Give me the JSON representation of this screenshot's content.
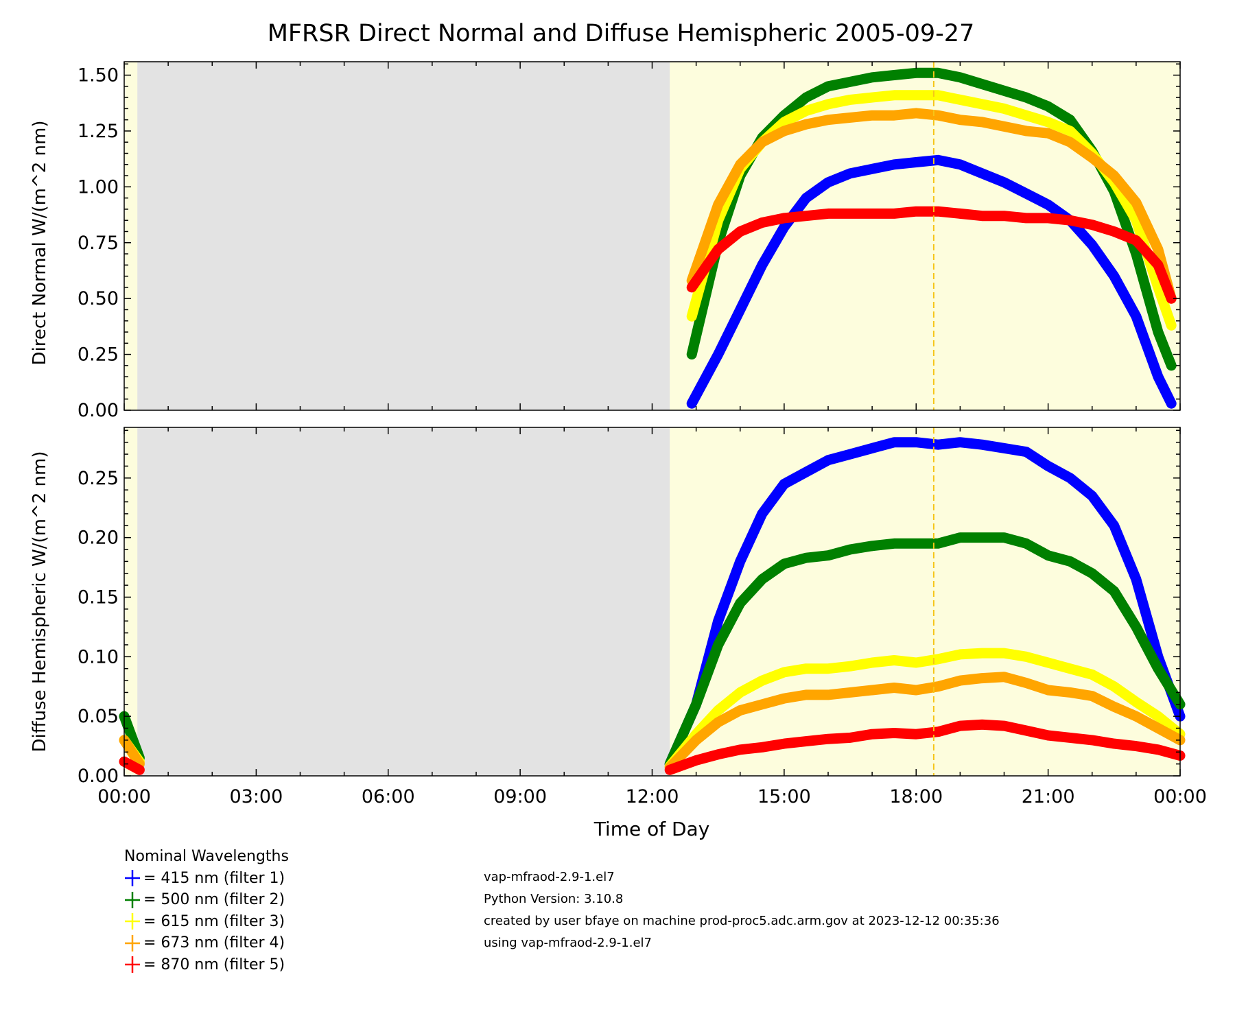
{
  "chart_data": [
    {
      "type": "scatter",
      "panel": "top",
      "title": "MFRSR Direct Normal and Diffuse Hemispheric 2005-09-27",
      "ylabel": "Direct Normal W/(m^2 nm)",
      "xlabel": "",
      "xlim": [
        0,
        24
      ],
      "ylim": [
        0,
        1.56
      ],
      "x_unit": "hours",
      "xticks": [
        0,
        3,
        6,
        9,
        12,
        15,
        18,
        21,
        24
      ],
      "yticks": [
        0,
        0.25,
        0.5,
        0.75,
        1.0,
        1.25,
        1.5
      ],
      "ytick_labels": [
        "0.00",
        "0.25",
        "0.50",
        "0.75",
        "1.00",
        "1.25",
        "1.50"
      ],
      "night_shading": [
        [
          0.3,
          12.4
        ]
      ],
      "solar_noon_line": 18.4,
      "x": [
        12.9,
        13.5,
        14,
        14.5,
        15,
        15.5,
        16,
        16.5,
        17,
        17.5,
        18,
        18.5,
        19,
        19.5,
        20,
        20.5,
        21,
        21.5,
        22,
        22.5,
        23,
        23.5,
        23.8
      ],
      "series": [
        {
          "name": "415 nm",
          "color": "#0000ff",
          "values": [
            0.03,
            0.25,
            0.45,
            0.65,
            0.82,
            0.95,
            1.02,
            1.06,
            1.08,
            1.1,
            1.11,
            1.12,
            1.1,
            1.06,
            1.02,
            0.97,
            0.92,
            0.85,
            0.74,
            0.6,
            0.42,
            0.15,
            0.03
          ]
        },
        {
          "name": "500 nm",
          "color": "#008000",
          "values": [
            0.25,
            0.75,
            1.05,
            1.22,
            1.32,
            1.4,
            1.45,
            1.47,
            1.49,
            1.5,
            1.51,
            1.51,
            1.49,
            1.46,
            1.43,
            1.4,
            1.36,
            1.3,
            1.16,
            0.98,
            0.7,
            0.35,
            0.2
          ]
        },
        {
          "name": "615 nm",
          "color": "#ffff00",
          "values": [
            0.42,
            0.85,
            1.08,
            1.2,
            1.29,
            1.34,
            1.37,
            1.39,
            1.4,
            1.41,
            1.41,
            1.41,
            1.39,
            1.37,
            1.35,
            1.32,
            1.29,
            1.25,
            1.15,
            1.02,
            0.85,
            0.55,
            0.38
          ]
        },
        {
          "name": "673 nm",
          "color": "#ffa500",
          "values": [
            0.58,
            0.92,
            1.1,
            1.2,
            1.25,
            1.28,
            1.3,
            1.31,
            1.32,
            1.32,
            1.33,
            1.32,
            1.3,
            1.29,
            1.27,
            1.25,
            1.24,
            1.2,
            1.13,
            1.05,
            0.93,
            0.72,
            0.5
          ]
        },
        {
          "name": "870 nm",
          "color": "#ff0000",
          "values": [
            0.55,
            0.72,
            0.8,
            0.84,
            0.86,
            0.87,
            0.88,
            0.88,
            0.88,
            0.88,
            0.89,
            0.89,
            0.88,
            0.87,
            0.87,
            0.86,
            0.86,
            0.85,
            0.83,
            0.8,
            0.76,
            0.65,
            0.5
          ]
        }
      ]
    },
    {
      "type": "scatter",
      "panel": "bottom",
      "ylabel": "Diffuse Hemispheric W/(m^2 nm)",
      "xlabel": "Time of Day",
      "xlim": [
        0,
        24
      ],
      "ylim": [
        0,
        0.2925
      ],
      "x_unit": "hours",
      "xticks": [
        0,
        3,
        6,
        9,
        12,
        15,
        18,
        21,
        24
      ],
      "xtick_labels": [
        "00:00",
        "03:00",
        "06:00",
        "09:00",
        "12:00",
        "15:00",
        "18:00",
        "21:00",
        "00:00"
      ],
      "yticks": [
        0,
        0.05,
        0.1,
        0.15,
        0.2,
        0.25
      ],
      "ytick_labels": [
        "0.00",
        "0.05",
        "0.10",
        "0.15",
        "0.20",
        "0.25"
      ],
      "night_shading": [
        [
          0.3,
          12.4
        ]
      ],
      "solar_noon_line": 18.4,
      "x": [
        0,
        0.35,
        null,
        12.4,
        13,
        13.5,
        14,
        14.5,
        15,
        15.5,
        16,
        16.5,
        17,
        17.5,
        18,
        18.5,
        19,
        19.5,
        20,
        20.5,
        21,
        21.5,
        22,
        22.5,
        23,
        23.5,
        24
      ],
      "series": [
        {
          "name": "415 nm",
          "color": "#0000ff",
          "values": [
            null,
            null,
            null,
            0.01,
            0.06,
            0.13,
            0.18,
            0.22,
            0.245,
            0.255,
            0.265,
            0.27,
            0.275,
            0.28,
            0.28,
            0.278,
            0.28,
            0.278,
            0.275,
            0.272,
            0.26,
            0.25,
            0.235,
            0.21,
            0.165,
            0.1,
            0.05
          ]
        },
        {
          "name": "500 nm",
          "color": "#008000",
          "values": [
            0.05,
            0.015,
            null,
            0.01,
            0.06,
            0.11,
            0.145,
            0.165,
            0.178,
            0.183,
            0.185,
            0.19,
            0.193,
            0.195,
            0.195,
            0.195,
            0.2,
            0.2,
            0.2,
            0.195,
            0.185,
            0.18,
            0.17,
            0.155,
            0.125,
            0.09,
            0.06
          ]
        },
        {
          "name": "615 nm",
          "color": "#ffff00",
          "values": [
            0.03,
            0.012,
            null,
            0.008,
            0.035,
            0.055,
            0.07,
            0.08,
            0.087,
            0.09,
            0.09,
            0.092,
            0.095,
            0.097,
            0.095,
            0.098,
            0.102,
            0.103,
            0.103,
            0.1,
            0.095,
            0.09,
            0.085,
            0.075,
            0.062,
            0.05,
            0.035
          ]
        },
        {
          "name": "673 nm",
          "color": "#ffa500",
          "values": [
            0.03,
            0.01,
            null,
            0.007,
            0.03,
            0.045,
            0.055,
            0.06,
            0.065,
            0.068,
            0.068,
            0.07,
            0.072,
            0.074,
            0.072,
            0.075,
            0.08,
            0.082,
            0.083,
            0.078,
            0.072,
            0.07,
            0.067,
            0.058,
            0.05,
            0.04,
            0.03
          ]
        },
        {
          "name": "870 nm",
          "color": "#ff0000",
          "values": [
            0.012,
            0.005,
            null,
            0.005,
            0.013,
            0.018,
            0.022,
            0.024,
            0.027,
            0.029,
            0.031,
            0.032,
            0.035,
            0.036,
            0.035,
            0.037,
            0.042,
            0.043,
            0.042,
            0.038,
            0.034,
            0.032,
            0.03,
            0.027,
            0.025,
            0.022,
            0.017
          ]
        }
      ]
    }
  ],
  "legend": {
    "title": "Nominal Wavelengths",
    "items": [
      {
        "label": "= 415 nm (filter 1)",
        "color": "#0000ff"
      },
      {
        "label": "= 500 nm (filter 2)",
        "color": "#008000"
      },
      {
        "label": "= 615 nm (filter 3)",
        "color": "#ffff00"
      },
      {
        "label": "= 673 nm (filter 4)",
        "color": "#ffa500"
      },
      {
        "label": "= 870 nm (filter 5)",
        "color": "#ff0000"
      }
    ]
  },
  "meta": {
    "lines": [
      "vap-mfraod-2.9-1.el7",
      "Python Version: 3.10.8",
      "created by user bfaye on machine prod-proc5.adc.arm.gov at 2023-12-12 00:35:36",
      "using vap-mfraod-2.9-1.el7"
    ]
  },
  "colors": {
    "day_bg": "#fdfddd",
    "night_bg": "#e3e3e3",
    "noon_line": "#f5c518"
  }
}
